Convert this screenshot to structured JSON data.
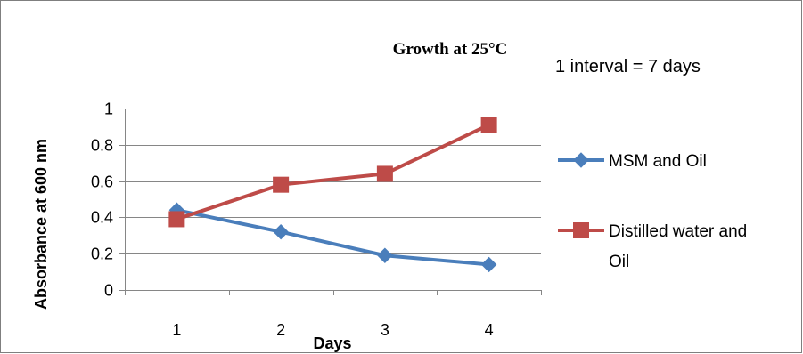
{
  "chart_data": {
    "type": "line",
    "title": "Growth at 25°C",
    "annotation": "1 interval = 7 days",
    "xlabel": "Days",
    "ylabel": "Absorbance at 600 nm",
    "categories": [
      "1",
      "2",
      "3",
      "4"
    ],
    "ylim": [
      0,
      1
    ],
    "yticks": [
      "0",
      "0.2",
      "0.4",
      "0.6",
      "0.8",
      "1"
    ],
    "grid": true,
    "legend_position": "right",
    "series": [
      {
        "name": "MSM and Oil",
        "legend_lines": [
          "MSM and Oil"
        ],
        "values": [
          0.44,
          0.32,
          0.19,
          0.14
        ],
        "color": "#4a7ebb",
        "marker": "diamond"
      },
      {
        "name": "Distilled water and Oil",
        "legend_lines": [
          "Distilled water and",
          "Oil"
        ],
        "values": [
          0.39,
          0.58,
          0.64,
          0.91
        ],
        "color": "#be4b48",
        "marker": "square"
      }
    ]
  }
}
